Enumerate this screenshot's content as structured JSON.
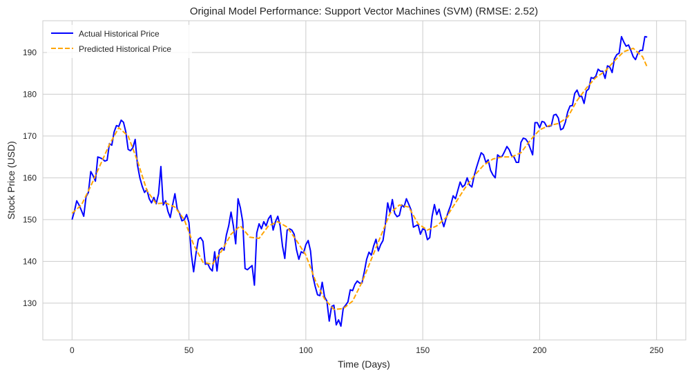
{
  "chart_data": {
    "type": "line",
    "title": "Original Model Performance: Support Vector Machines (SVM) (RMSE: 2.52)",
    "xlabel": "Time (Days)",
    "ylabel": "Stock Price (USD)",
    "xlim": [
      -12.5,
      262.5
    ],
    "ylim": [
      121.2,
      197.6
    ],
    "xticks": [
      0,
      50,
      100,
      150,
      200,
      250
    ],
    "yticks": [
      130,
      140,
      150,
      160,
      170,
      180,
      190
    ],
    "grid": true,
    "legend_position": "top-left",
    "series": [
      {
        "name": "Actual Historical Price",
        "color": "#0000ff",
        "style": "solid",
        "points": [
          [
            0,
            150.0
          ],
          [
            1,
            152.0
          ],
          [
            2,
            154.5
          ],
          [
            3,
            153.5
          ],
          [
            4,
            152.2
          ],
          [
            5,
            150.8
          ],
          [
            6,
            155.5
          ],
          [
            7,
            156.5
          ],
          [
            8,
            161.5
          ],
          [
            9,
            160.5
          ],
          [
            10,
            159.2
          ],
          [
            11,
            165.0
          ],
          [
            12,
            164.8
          ],
          [
            13,
            164.5
          ],
          [
            14,
            164.0
          ],
          [
            15,
            164.2
          ],
          [
            16,
            168.2
          ],
          [
            17,
            167.8
          ],
          [
            18,
            171.0
          ],
          [
            19,
            172.5
          ],
          [
            20,
            172.3
          ],
          [
            21,
            173.8
          ],
          [
            22,
            173.3
          ],
          [
            23,
            171.0
          ],
          [
            24,
            166.8
          ],
          [
            25,
            166.5
          ],
          [
            26,
            167.2
          ],
          [
            27,
            169.2
          ],
          [
            28,
            163.0
          ],
          [
            29,
            160.0
          ],
          [
            30,
            158.0
          ],
          [
            31,
            156.5
          ],
          [
            32,
            157.2
          ],
          [
            33,
            155.0
          ],
          [
            34,
            154.0
          ],
          [
            35,
            155.3
          ],
          [
            36,
            153.8
          ],
          [
            37,
            156.2
          ],
          [
            38,
            162.7
          ],
          [
            39,
            153.5
          ],
          [
            40,
            154.5
          ],
          [
            41,
            152.0
          ],
          [
            42,
            150.5
          ],
          [
            43,
            153.5
          ],
          [
            44,
            156.2
          ],
          [
            45,
            152.5
          ],
          [
            46,
            151.5
          ],
          [
            47,
            149.7
          ],
          [
            48,
            150.0
          ],
          [
            49,
            151.2
          ],
          [
            50,
            149.3
          ],
          [
            51,
            141.8
          ],
          [
            52,
            137.5
          ],
          [
            53,
            141.8
          ],
          [
            54,
            145.3
          ],
          [
            55,
            145.7
          ],
          [
            56,
            144.8
          ],
          [
            57,
            139.3
          ],
          [
            58,
            139.5
          ],
          [
            59,
            138.3
          ],
          [
            60,
            137.7
          ],
          [
            61,
            142.3
          ],
          [
            62,
            137.7
          ],
          [
            63,
            142.7
          ],
          [
            64,
            143.2
          ],
          [
            65,
            142.7
          ],
          [
            66,
            146.3
          ],
          [
            67,
            148.5
          ],
          [
            68,
            151.8
          ],
          [
            69,
            148.5
          ],
          [
            70,
            144.2
          ],
          [
            71,
            155.0
          ],
          [
            72,
            152.8
          ],
          [
            73,
            149.5
          ],
          [
            74,
            138.3
          ],
          [
            75,
            138.0
          ],
          [
            76,
            138.5
          ],
          [
            77,
            139.0
          ],
          [
            78,
            134.3
          ],
          [
            79,
            146.8
          ],
          [
            80,
            149.0
          ],
          [
            81,
            147.8
          ],
          [
            82,
            149.5
          ],
          [
            83,
            148.5
          ],
          [
            84,
            150.2
          ],
          [
            85,
            151.0
          ],
          [
            86,
            147.5
          ],
          [
            87,
            149.5
          ],
          [
            88,
            150.8
          ],
          [
            89,
            148.5
          ],
          [
            90,
            143.7
          ],
          [
            91,
            140.7
          ],
          [
            92,
            147.5
          ],
          [
            93,
            147.8
          ],
          [
            94,
            147.5
          ],
          [
            95,
            146.5
          ],
          [
            96,
            142.8
          ],
          [
            97,
            140.5
          ],
          [
            98,
            142.3
          ],
          [
            99,
            142.0
          ],
          [
            100,
            144.0
          ],
          [
            101,
            145.0
          ],
          [
            102,
            142.5
          ],
          [
            103,
            136.5
          ],
          [
            104,
            134.0
          ],
          [
            105,
            132.0
          ],
          [
            106,
            131.8
          ],
          [
            107,
            135.0
          ],
          [
            108,
            131.5
          ],
          [
            109,
            130.5
          ],
          [
            110,
            125.7
          ],
          [
            111,
            129.2
          ],
          [
            112,
            129.5
          ],
          [
            113,
            124.8
          ],
          [
            114,
            126.0
          ],
          [
            115,
            124.5
          ],
          [
            116,
            128.8
          ],
          [
            117,
            129.5
          ],
          [
            118,
            130.3
          ],
          [
            119,
            133.2
          ],
          [
            120,
            133.0
          ],
          [
            121,
            134.5
          ],
          [
            122,
            135.3
          ],
          [
            123,
            134.8
          ],
          [
            124,
            134.8
          ],
          [
            125,
            137.5
          ],
          [
            126,
            140.5
          ],
          [
            127,
            142.2
          ],
          [
            128,
            141.5
          ],
          [
            129,
            143.7
          ],
          [
            130,
            145.3
          ],
          [
            131,
            142.5
          ],
          [
            132,
            144.0
          ],
          [
            133,
            145.0
          ],
          [
            134,
            148.8
          ],
          [
            135,
            154.0
          ],
          [
            136,
            151.7
          ],
          [
            137,
            154.8
          ],
          [
            138,
            151.5
          ],
          [
            139,
            150.7
          ],
          [
            140,
            151.0
          ],
          [
            141,
            153.5
          ],
          [
            142,
            153.0
          ],
          [
            143,
            155.0
          ],
          [
            144,
            153.7
          ],
          [
            145,
            152.3
          ],
          [
            146,
            148.2
          ],
          [
            147,
            148.5
          ],
          [
            148,
            148.8
          ],
          [
            149,
            146.5
          ],
          [
            150,
            147.8
          ],
          [
            151,
            147.5
          ],
          [
            152,
            145.2
          ],
          [
            153,
            145.7
          ],
          [
            154,
            150.8
          ],
          [
            155,
            153.6
          ],
          [
            156,
            151.2
          ],
          [
            157,
            152.5
          ],
          [
            158,
            150.2
          ],
          [
            159,
            148.3
          ],
          [
            160,
            150.3
          ],
          [
            161,
            152.0
          ],
          [
            162,
            153.5
          ],
          [
            163,
            155.7
          ],
          [
            164,
            155.0
          ],
          [
            165,
            157.0
          ],
          [
            166,
            159.0
          ],
          [
            167,
            157.8
          ],
          [
            168,
            158.3
          ],
          [
            169,
            160.0
          ],
          [
            170,
            158.3
          ],
          [
            171,
            157.8
          ],
          [
            172,
            160.5
          ],
          [
            173,
            162.5
          ],
          [
            174,
            164.3
          ],
          [
            175,
            166.0
          ],
          [
            176,
            165.5
          ],
          [
            177,
            163.7
          ],
          [
            178,
            164.3
          ],
          [
            179,
            161.8
          ],
          [
            180,
            160.7
          ],
          [
            181,
            160.0
          ],
          [
            182,
            165.5
          ],
          [
            183,
            165.0
          ],
          [
            184,
            165.2
          ],
          [
            185,
            166.3
          ],
          [
            186,
            167.5
          ],
          [
            187,
            166.7
          ],
          [
            188,
            165.3
          ],
          [
            189,
            165.0
          ],
          [
            190,
            163.7
          ],
          [
            191,
            163.7
          ],
          [
            192,
            168.5
          ],
          [
            193,
            169.5
          ],
          [
            194,
            169.3
          ],
          [
            195,
            168.5
          ],
          [
            196,
            167.0
          ],
          [
            197,
            165.5
          ],
          [
            198,
            173.2
          ],
          [
            199,
            173.2
          ],
          [
            200,
            172.0
          ],
          [
            201,
            173.5
          ],
          [
            202,
            173.3
          ],
          [
            203,
            172.3
          ],
          [
            204,
            172.3
          ],
          [
            205,
            172.5
          ],
          [
            206,
            175.0
          ],
          [
            207,
            175.2
          ],
          [
            208,
            174.3
          ],
          [
            209,
            171.5
          ],
          [
            210,
            171.8
          ],
          [
            211,
            173.3
          ],
          [
            212,
            175.8
          ],
          [
            213,
            177.2
          ],
          [
            214,
            177.3
          ],
          [
            215,
            180.2
          ],
          [
            216,
            181.0
          ],
          [
            217,
            179.5
          ],
          [
            218,
            179.5
          ],
          [
            219,
            177.8
          ],
          [
            220,
            180.8
          ],
          [
            221,
            181.3
          ],
          [
            222,
            184.0
          ],
          [
            223,
            183.8
          ],
          [
            224,
            184.3
          ],
          [
            225,
            186.0
          ],
          [
            226,
            185.5
          ],
          [
            227,
            185.5
          ],
          [
            228,
            183.8
          ],
          [
            229,
            186.8
          ],
          [
            230,
            186.5
          ],
          [
            231,
            185.2
          ],
          [
            232,
            188.5
          ],
          [
            233,
            189.5
          ],
          [
            234,
            189.8
          ],
          [
            235,
            193.8
          ],
          [
            236,
            192.5
          ],
          [
            237,
            191.5
          ],
          [
            238,
            191.8
          ],
          [
            239,
            190.5
          ],
          [
            240,
            189.0
          ],
          [
            241,
            188.3
          ],
          [
            242,
            189.8
          ],
          [
            243,
            190.5
          ],
          [
            244,
            190.5
          ],
          [
            245,
            193.8
          ],
          [
            246,
            193.7
          ]
        ]
      },
      {
        "name": "Predicted Historical Price",
        "color": "#ffa500",
        "style": "dashed",
        "points": [
          [
            0,
            151.5
          ],
          [
            4,
            153.5
          ],
          [
            8,
            158.0
          ],
          [
            12,
            163.0
          ],
          [
            16,
            168.0
          ],
          [
            20,
            172.0
          ],
          [
            24,
            170.0
          ],
          [
            28,
            164.0
          ],
          [
            32,
            157.0
          ],
          [
            36,
            153.8
          ],
          [
            40,
            154.0
          ],
          [
            44,
            153.0
          ],
          [
            48,
            150.0
          ],
          [
            52,
            144.0
          ],
          [
            56,
            139.8
          ],
          [
            60,
            139.3
          ],
          [
            64,
            142.5
          ],
          [
            68,
            146.5
          ],
          [
            72,
            148.5
          ],
          [
            76,
            145.8
          ],
          [
            80,
            145.5
          ],
          [
            84,
            148.5
          ],
          [
            88,
            149.5
          ],
          [
            92,
            148.2
          ],
          [
            96,
            145.0
          ],
          [
            100,
            141.5
          ],
          [
            104,
            135.5
          ],
          [
            108,
            131.0
          ],
          [
            112,
            128.5
          ],
          [
            116,
            128.7
          ],
          [
            120,
            130.5
          ],
          [
            124,
            135.0
          ],
          [
            128,
            140.5
          ],
          [
            132,
            146.0
          ],
          [
            136,
            151.5
          ],
          [
            140,
            153.5
          ],
          [
            144,
            153.0
          ],
          [
            148,
            149.0
          ],
          [
            152,
            147.5
          ],
          [
            156,
            148.5
          ],
          [
            160,
            150.5
          ],
          [
            164,
            154.0
          ],
          [
            168,
            157.5
          ],
          [
            172,
            160.5
          ],
          [
            176,
            163.0
          ],
          [
            180,
            164.5
          ],
          [
            184,
            165.0
          ],
          [
            188,
            165.0
          ],
          [
            192,
            166.0
          ],
          [
            196,
            169.0
          ],
          [
            200,
            171.5
          ],
          [
            204,
            172.5
          ],
          [
            208,
            173.0
          ],
          [
            212,
            174.5
          ],
          [
            216,
            178.5
          ],
          [
            220,
            181.5
          ],
          [
            224,
            184.0
          ],
          [
            228,
            185.5
          ],
          [
            232,
            188.0
          ],
          [
            236,
            190.2
          ],
          [
            240,
            191.0
          ],
          [
            244,
            189.0
          ],
          [
            246,
            186.5
          ]
        ]
      }
    ]
  }
}
